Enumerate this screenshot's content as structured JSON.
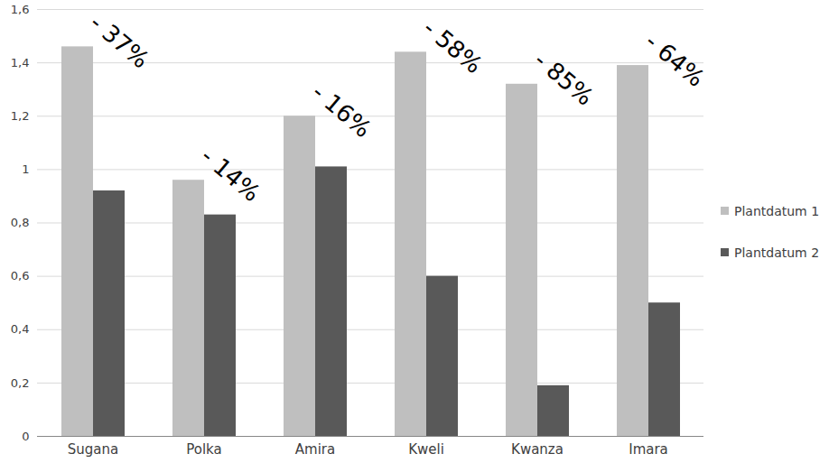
{
  "chart_data": {
    "type": "bar",
    "categories": [
      "Sugana",
      "Polka",
      "Amira",
      "Kweli",
      "Kwanza",
      "Imara"
    ],
    "series": [
      {
        "name": "Plantdatum 1",
        "color": "#bfbfbf",
        "values": [
          1.46,
          0.96,
          1.2,
          1.44,
          1.32,
          1.39
        ]
      },
      {
        "name": "Plantdatum 2",
        "color": "#595959",
        "values": [
          0.92,
          0.83,
          1.01,
          0.6,
          0.19,
          0.5
        ]
      }
    ],
    "ylim": [
      0,
      1.6
    ],
    "yticks": [
      0,
      {
        "value": 0.2,
        "label": "0,2"
      },
      {
        "value": 0.4,
        "label": "0,4"
      },
      {
        "value": 0.6,
        "label": "0,6"
      },
      {
        "value": 0.8,
        "label": "0,8"
      },
      1,
      {
        "value": 1.2,
        "label": "1,2"
      },
      {
        "value": 1.4,
        "label": "1,4"
      },
      {
        "value": 1.6,
        "label": "1,6"
      }
    ],
    "grid": true,
    "legend": "right",
    "annotations": [
      {
        "category": "Sugana",
        "text": "- 37%"
      },
      {
        "category": "Polka",
        "text": "- 14%"
      },
      {
        "category": "Amira",
        "text": "- 16%"
      },
      {
        "category": "Kweli",
        "text": "- 58%"
      },
      {
        "category": "Kwanza",
        "text": "- 85%"
      },
      {
        "category": "Imara",
        "text": "- 64%"
      }
    ]
  }
}
